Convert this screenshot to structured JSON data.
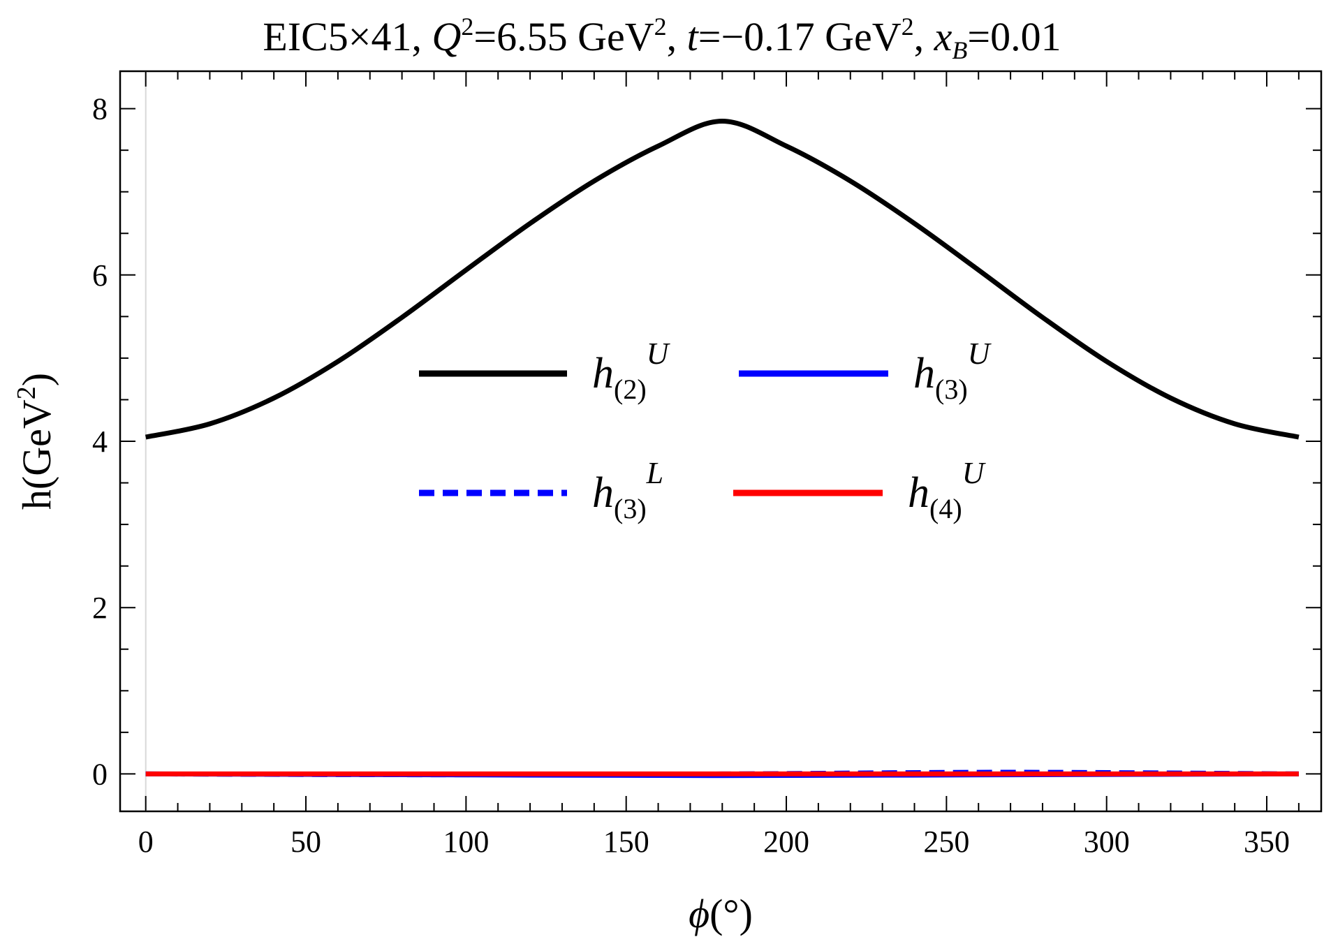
{
  "chart_data": {
    "type": "line",
    "title": {
      "prefix": "EIC5×41, ",
      "q_var": "Q",
      "q_exp": "2",
      "q_val": "=6.55 GeV",
      "q_unit_exp": "2",
      "sep1": ", ",
      "t_var": "t",
      "t_val": "=−0.17 GeV",
      "t_unit_exp": "2",
      "sep2": ", ",
      "x_var": "x",
      "x_sub": "B",
      "x_val": "=0.01"
    },
    "xlabel": {
      "symbol": "ϕ",
      "unit": "(°)"
    },
    "ylabel": {
      "text": "h(GeV",
      "exp": "2",
      "close": ")"
    },
    "xlim": [
      -8,
      367
    ],
    "ylim": [
      -0.45,
      8.45
    ],
    "xticks": [
      0,
      50,
      100,
      150,
      200,
      250,
      300,
      350
    ],
    "yticks": [
      0,
      2,
      4,
      6,
      8
    ],
    "xtick_labels": [
      "0",
      "50",
      "100",
      "150",
      "200",
      "250",
      "300",
      "350"
    ],
    "ytick_labels": [
      "0",
      "2",
      "4",
      "6",
      "8"
    ],
    "x_minor_step": 10,
    "y_minor_step": 0.5,
    "grid": false,
    "legend_position": "center",
    "series": [
      {
        "name": "h(2)U",
        "label_base": "h",
        "label_sub": "(2)",
        "label_sup": "U",
        "color": "#000000",
        "dash": "solid",
        "x": [
          0,
          20,
          40,
          60,
          80,
          100,
          120,
          140,
          160,
          180,
          200,
          220,
          240,
          260,
          280,
          300,
          320,
          340,
          360
        ],
        "y": [
          4.05,
          4.21,
          4.52,
          4.96,
          5.49,
          6.06,
          6.62,
          7.13,
          7.55,
          7.85,
          7.55,
          7.13,
          6.62,
          6.06,
          5.49,
          4.96,
          4.52,
          4.21,
          4.05
        ]
      },
      {
        "name": "h(3)U",
        "label_base": "h",
        "label_sub": "(3)",
        "label_sup": "U",
        "color": "#0000ff",
        "dash": "solid",
        "x": [
          0,
          90,
          180,
          270,
          360
        ],
        "y": [
          0,
          -0.01,
          -0.02,
          -0.01,
          0
        ]
      },
      {
        "name": "h(3)L",
        "label_base": "h",
        "label_sub": "(3)",
        "label_sup": "L",
        "color": "#0000ff",
        "dash": "dashed",
        "x": [
          0,
          90,
          180,
          270,
          360
        ],
        "y": [
          0,
          -0.01,
          0,
          0.02,
          0
        ]
      },
      {
        "name": "h(4)U",
        "label_base": "h",
        "label_sub": "(4)",
        "label_sup": "U",
        "color": "#ff0000",
        "dash": "solid",
        "x": [
          0,
          90,
          180,
          270,
          360
        ],
        "y": [
          0,
          0,
          0,
          0,
          0
        ]
      }
    ]
  }
}
